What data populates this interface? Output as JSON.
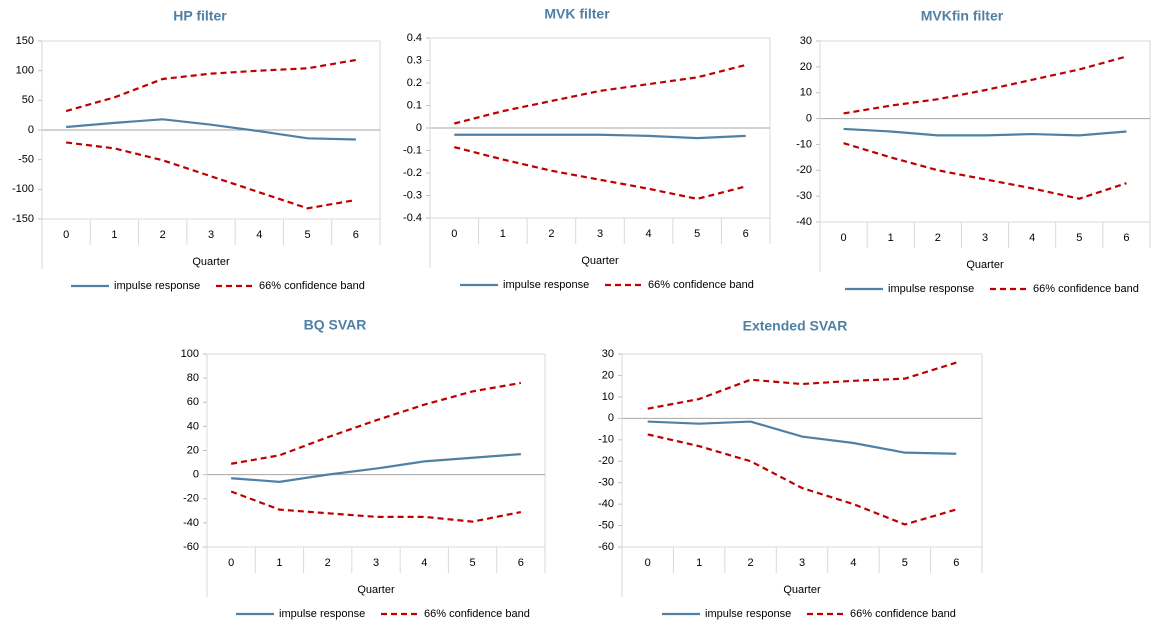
{
  "chart_data": [
    {
      "type": "line",
      "title": "HP filter",
      "x_label": "Quarter",
      "categories": [
        "0",
        "1",
        "2",
        "3",
        "4",
        "5",
        "6"
      ],
      "ylim": [
        -150,
        150
      ],
      "yticks": [
        -150,
        -100,
        -50,
        0,
        50,
        100,
        150
      ],
      "series": [
        {
          "name": "impulse response",
          "color": "#4f81a6",
          "values": [
            5,
            12,
            18,
            9,
            -2,
            -14,
            -16
          ]
        },
        {
          "name": "66% confidence band",
          "color": "#c00000",
          "dashed": true,
          "values": [
            32,
            55,
            86,
            95,
            100,
            104,
            118
          ]
        },
        {
          "color": "#c00000",
          "dashed": true,
          "values": [
            -21,
            -31,
            -51,
            -78,
            -105,
            -132,
            -118
          ]
        }
      ]
    },
    {
      "type": "line",
      "title": "MVK filter",
      "x_label": "Quarter",
      "categories": [
        "0",
        "1",
        "2",
        "3",
        "4",
        "5",
        "6"
      ],
      "ylim": [
        -0.4,
        0.4
      ],
      "yticks": [
        -0.4,
        -0.3,
        -0.2,
        -0.1,
        0,
        0.1,
        0.2,
        0.3,
        0.4
      ],
      "series": [
        {
          "name": "impulse response",
          "color": "#4f81a6",
          "values": [
            -0.03,
            -0.03,
            -0.03,
            -0.03,
            -0.035,
            -0.045,
            -0.035
          ]
        },
        {
          "name": "66% confidence band",
          "color": "#c00000",
          "dashed": true,
          "values": [
            0.02,
            0.075,
            0.12,
            0.165,
            0.195,
            0.225,
            0.28
          ]
        },
        {
          "color": "#c00000",
          "dashed": true,
          "values": [
            -0.085,
            -0.14,
            -0.19,
            -0.23,
            -0.27,
            -0.315,
            -0.26
          ]
        }
      ]
    },
    {
      "type": "line",
      "title": "MVKfin filter",
      "x_label": "Quarter",
      "categories": [
        "0",
        "1",
        "2",
        "3",
        "4",
        "5",
        "6"
      ],
      "ylim": [
        -40,
        30
      ],
      "yticks": [
        -40,
        -30,
        -20,
        -10,
        0,
        10,
        20,
        30
      ],
      "series": [
        {
          "name": "impulse response",
          "color": "#4f81a6",
          "values": [
            -4,
            -5,
            -6.5,
            -6.5,
            -6,
            -6.5,
            -5
          ]
        },
        {
          "name": "66% confidence band",
          "color": "#c00000",
          "dashed": true,
          "values": [
            2,
            5,
            7.5,
            11,
            15,
            19,
            24
          ]
        },
        {
          "color": "#c00000",
          "dashed": true,
          "values": [
            -9.5,
            -15,
            -20,
            -23.5,
            -27,
            -31,
            -25
          ]
        }
      ]
    },
    {
      "type": "line",
      "title": "BQ SVAR",
      "x_label": "Quarter",
      "categories": [
        "0",
        "1",
        "2",
        "3",
        "4",
        "5",
        "6"
      ],
      "ylim": [
        -60,
        100
      ],
      "yticks": [
        -60,
        -40,
        -20,
        0,
        20,
        40,
        60,
        80,
        100
      ],
      "series": [
        {
          "name": "impulse response",
          "color": "#4f81a6",
          "values": [
            -3,
            -6,
            0,
            5,
            11,
            14,
            17
          ]
        },
        {
          "name": "66% confidence band",
          "color": "#c00000",
          "dashed": true,
          "values": [
            9,
            16,
            31,
            45,
            58,
            69,
            76
          ]
        },
        {
          "color": "#c00000",
          "dashed": true,
          "values": [
            -14,
            -29,
            -32,
            -35,
            -35,
            -39,
            -31
          ]
        }
      ]
    },
    {
      "type": "line",
      "title": "Extended SVAR",
      "x_label": "Quarter",
      "categories": [
        "0",
        "1",
        "2",
        "3",
        "4",
        "5",
        "6"
      ],
      "ylim": [
        -60,
        30
      ],
      "yticks": [
        -60,
        -50,
        -40,
        -30,
        -20,
        -10,
        0,
        10,
        20,
        30
      ],
      "series": [
        {
          "name": "impulse response",
          "color": "#4f81a6",
          "values": [
            -1.5,
            -2.5,
            -1.5,
            -8.5,
            -11.5,
            -16,
            -16.5
          ]
        },
        {
          "name": "66% confidence band",
          "color": "#c00000",
          "dashed": true,
          "values": [
            4.5,
            9,
            18,
            16,
            17.5,
            18.5,
            26
          ]
        },
        {
          "color": "#c00000",
          "dashed": true,
          "values": [
            -7.5,
            -13,
            -20,
            -32.5,
            -40,
            -49.5,
            -42.5
          ]
        }
      ]
    }
  ]
}
